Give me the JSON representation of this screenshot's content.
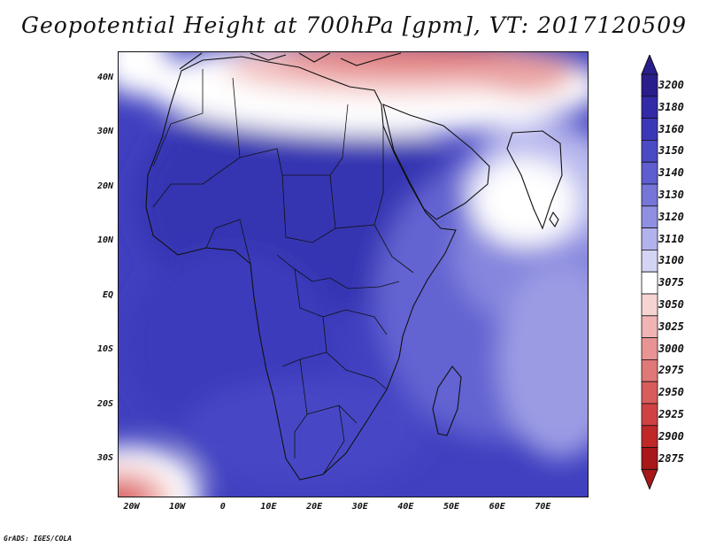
{
  "title": "Geopotential Height at 700hPa [gpm], VT: 2017120509",
  "credit": "GrADS: IGES/COLA",
  "map": {
    "lon_range": [
      -23,
      80
    ],
    "lat_range": [
      -37,
      45
    ],
    "y_ticks": [
      {
        "lat": 40,
        "label": "40N"
      },
      {
        "lat": 30,
        "label": "30N"
      },
      {
        "lat": 20,
        "label": "20N"
      },
      {
        "lat": 10,
        "label": "10N"
      },
      {
        "lat": 0,
        "label": "EQ"
      },
      {
        "lat": -10,
        "label": "10S"
      },
      {
        "lat": -20,
        "label": "20S"
      },
      {
        "lat": -30,
        "label": "30S"
      }
    ],
    "x_ticks": [
      {
        "lon": -20,
        "label": "20W"
      },
      {
        "lon": -10,
        "label": "10W"
      },
      {
        "lon": 0,
        "label": "0"
      },
      {
        "lon": 10,
        "label": "10E"
      },
      {
        "lon": 20,
        "label": "20E"
      },
      {
        "lon": 30,
        "label": "30E"
      },
      {
        "lon": 40,
        "label": "40E"
      },
      {
        "lon": 50,
        "label": "50E"
      },
      {
        "lon": 60,
        "label": "60E"
      },
      {
        "lon": 70,
        "label": "70E"
      }
    ]
  },
  "colorbar": {
    "levels": [
      {
        "value": "3200",
        "color": "#2a1e8c"
      },
      {
        "value": "3180",
        "color": "#322aa6"
      },
      {
        "value": "3160",
        "color": "#3b38b8"
      },
      {
        "value": "3150",
        "color": "#4a4ac4"
      },
      {
        "value": "3140",
        "color": "#5e5ed0"
      },
      {
        "value": "3130",
        "color": "#7676d9"
      },
      {
        "value": "3120",
        "color": "#9090e2"
      },
      {
        "value": "3110",
        "color": "#b2b2ec"
      },
      {
        "value": "3100",
        "color": "#d4d4f4"
      },
      {
        "value": "3075",
        "color": "#ffffff"
      },
      {
        "value": "3050",
        "color": "#f6d4d4"
      },
      {
        "value": "3025",
        "color": "#f0b4b4"
      },
      {
        "value": "3000",
        "color": "#e89494"
      },
      {
        "value": "2975",
        "color": "#e07878"
      },
      {
        "value": "2950",
        "color": "#d95c5c"
      },
      {
        "value": "2925",
        "color": "#d04242"
      },
      {
        "value": "2900",
        "color": "#c02828"
      },
      {
        "value": "2875",
        "color": "#a81818"
      }
    ]
  }
}
